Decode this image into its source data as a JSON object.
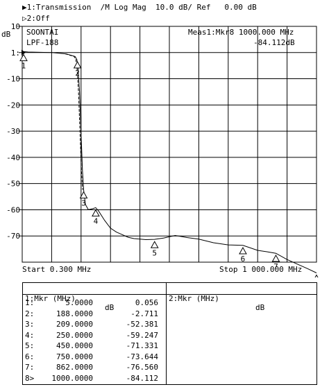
{
  "header": {
    "trace1": "▶1:Transmission  /M Log Mag  10.0 dB/ Ref   0.00 dB",
    "trace2": "▷2:Off"
  },
  "chart_data": {
    "type": "line",
    "title": "",
    "unit_label": "dB",
    "x_unit": "MHz",
    "xlim": [
      0.3,
      1000
    ],
    "ylim": [
      -80,
      10
    ],
    "ref_level": 0,
    "scale_db_per_div": 10,
    "grid": true,
    "y_ticks": [
      10,
      0,
      -10,
      -20,
      -30,
      -40,
      -50,
      -60,
      -70
    ],
    "y_tick_labels": [
      "10",
      "1:",
      "-10",
      "-20",
      "-30",
      "-40",
      "-50",
      "-60",
      "-70"
    ],
    "start_label": "Start 0.300 MHz",
    "stop_label": "Stop 1 000.000 MHz",
    "annotations": {
      "top_left_line1": "SOONTAI",
      "top_left_line2": "LPF-188",
      "readout_line1": "Meas1:Mkr8 1000.000 MHz",
      "readout_line2": "-84.112dB"
    },
    "series": [
      {
        "x": [
          0.3,
          20,
          60,
          100,
          150,
          180,
          186,
          190,
          195,
          200,
          205,
          209,
          215,
          225,
          240,
          250,
          260,
          280,
          300,
          320,
          340,
          360,
          380,
          400,
          420,
          450,
          480,
          520,
          560,
          600,
          650,
          700,
          750,
          800,
          830,
          862,
          900,
          940,
          970,
          1000
        ],
        "y": [
          0.4,
          0.2,
          0.1,
          0.0,
          -0.5,
          -1.5,
          -2.7,
          -6,
          -15,
          -30,
          -45,
          -52.4,
          -58,
          -60,
          -59.6,
          -59.2,
          -60.5,
          -64,
          -67,
          -68.5,
          -69.5,
          -70.5,
          -71,
          -71.2,
          -71.4,
          -71.3,
          -70.8,
          -69.8,
          -70.6,
          -71.2,
          -72.6,
          -73.4,
          -73.6,
          -75.5,
          -76,
          -76.6,
          -79,
          -81,
          -82.5,
          -84.1
        ]
      }
    ],
    "markers": [
      {
        "id": "1",
        "x": 5.0,
        "y": 0.056
      },
      {
        "id": "2",
        "x": 188.0,
        "y": -2.711
      },
      {
        "id": "3",
        "x": 209.0,
        "y": -52.381
      },
      {
        "id": "4",
        "x": 250.0,
        "y": -59.247
      },
      {
        "id": "5",
        "x": 450.0,
        "y": -71.331
      },
      {
        "id": "6",
        "x": 750.0,
        "y": -73.644
      },
      {
        "id": "7",
        "x": 862.0,
        "y": -76.56
      },
      {
        "id": "8",
        "x": 1000.0,
        "y": -84.112
      }
    ]
  },
  "marker_table": {
    "left_header": {
      "title": "1:Mkr (MHz)",
      "unit": "dB"
    },
    "right_header": {
      "title": "2:Mkr (MHz)",
      "unit": "dB"
    },
    "rows": [
      {
        "id": "1:",
        "freq": "5.0000",
        "value": "0.056"
      },
      {
        "id": "2:",
        "freq": "188.0000",
        "value": "-2.711"
      },
      {
        "id": "3:",
        "freq": "209.0000",
        "value": "-52.381"
      },
      {
        "id": "4:",
        "freq": "250.0000",
        "value": "-59.247"
      },
      {
        "id": "5:",
        "freq": "450.0000",
        "value": "-71.331"
      },
      {
        "id": "6:",
        "freq": "750.0000",
        "value": "-73.644"
      },
      {
        "id": "7:",
        "freq": "862.0000",
        "value": "-76.560"
      },
      {
        "id": "8>",
        "freq": "1000.0000",
        "value": "-84.112"
      }
    ]
  }
}
